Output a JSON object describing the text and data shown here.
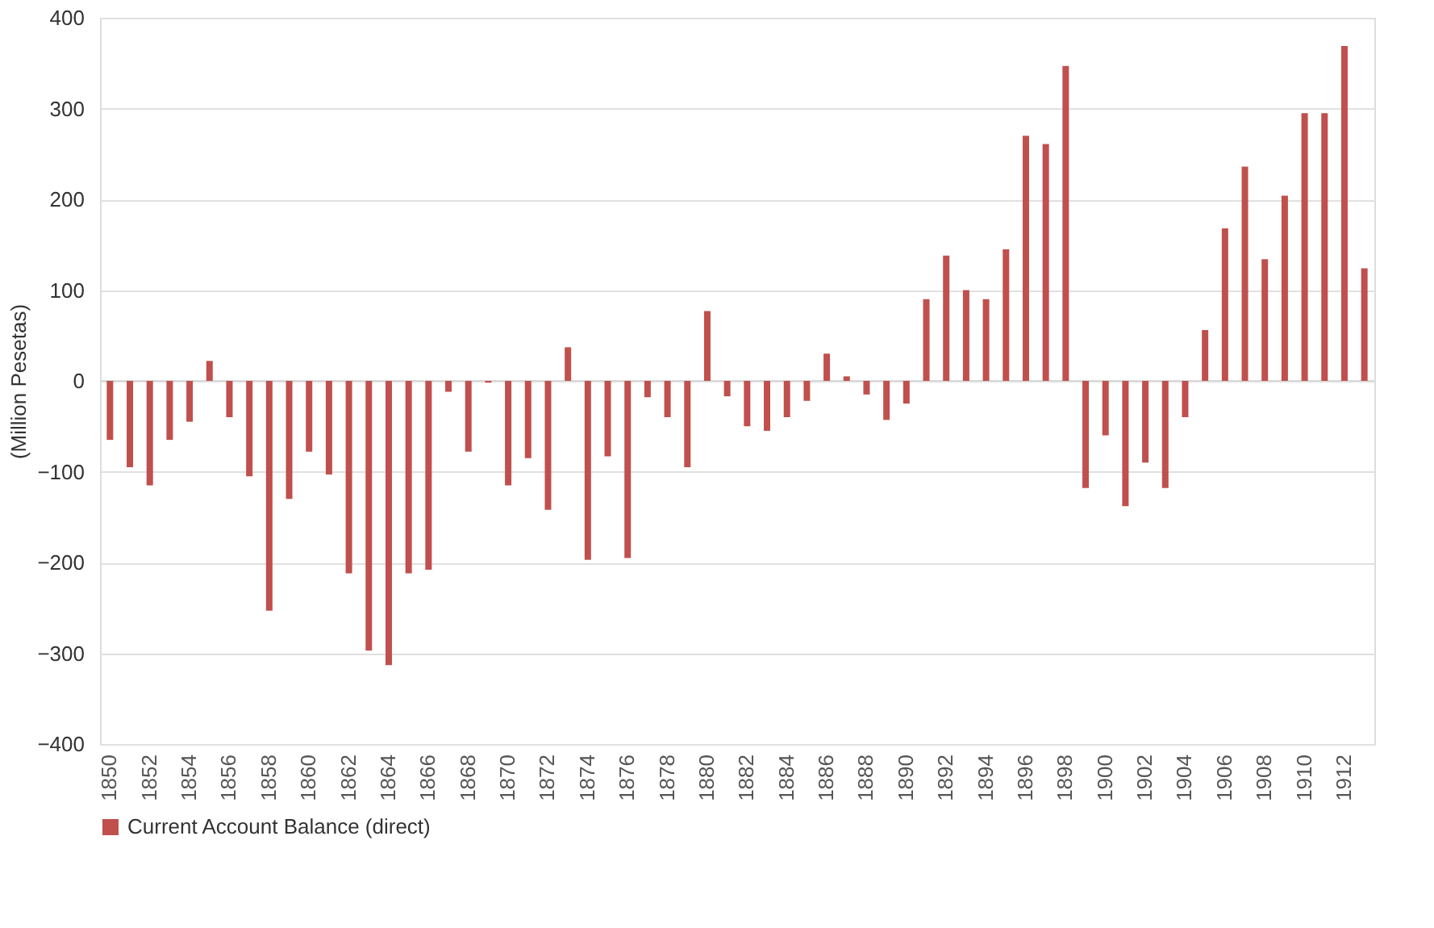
{
  "chart_data": {
    "type": "bar",
    "ylabel": "(Million Pesetas)",
    "categories": [
      "1850",
      null,
      "1852",
      null,
      "1854",
      null,
      "1856",
      null,
      "1858",
      null,
      "1860",
      null,
      "1862",
      null,
      "1864",
      null,
      "1866",
      null,
      "1868",
      null,
      "1870",
      null,
      "1872",
      null,
      "1874",
      null,
      "1876",
      null,
      "1878",
      null,
      "1880",
      null,
      "1882",
      null,
      "1884",
      null,
      "1886",
      null,
      "1888",
      null,
      "1890",
      null,
      "1892",
      null,
      "1894",
      null,
      "1896",
      null,
      "1898",
      null,
      "1900",
      null,
      "1902",
      null,
      "1904",
      null,
      "1906",
      null,
      "1908",
      null,
      "1910",
      null,
      "1912",
      null
    ],
    "series": [
      {
        "name": "Current Account Balance (direct)",
        "color": "#c0504d",
        "values": [
          -65,
          -95,
          -115,
          -65,
          -45,
          22,
          -40,
          -105,
          -253,
          -130,
          -78,
          -103,
          -212,
          -297,
          -313,
          -212,
          -208,
          -12,
          -78,
          -2,
          -115,
          -85,
          -142,
          37,
          -197,
          -83,
          -195,
          -18,
          -40,
          -95,
          77,
          -17,
          -50,
          -55,
          -40,
          -22,
          30,
          5,
          -15,
          -43,
          -25,
          90,
          138,
          100,
          90,
          145,
          270,
          261,
          347,
          -118,
          -60,
          -138,
          -90,
          -118,
          -40,
          56,
          168,
          236,
          134,
          204,
          295,
          295,
          369,
          124
        ]
      }
    ],
    "ylim": [
      -400,
      400
    ],
    "yticks": [
      -400,
      -300,
      -200,
      -100,
      0,
      100,
      200,
      300,
      400
    ],
    "grid": "y",
    "legend": "bottom"
  }
}
